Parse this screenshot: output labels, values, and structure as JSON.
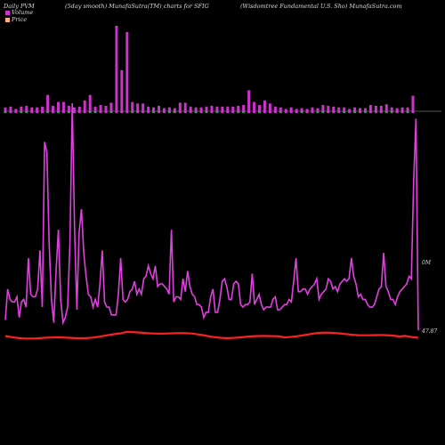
{
  "header": {
    "left": "Daily PVM",
    "center_left": "(5day smooth) MunafaSutra(TM) charts for SFIG",
    "right": "(Wisdomtree   Fundamental U.S. Sho) MunafaSutra.com"
  },
  "legend": [
    {
      "label": "Volume",
      "color": "#cc33cc"
    },
    {
      "label": "Price",
      "color": "#ffaa88"
    }
  ],
  "colors": {
    "volume_bar": "#cc33cc",
    "volume_bar_down": "#22aa44",
    "volume_line": "#e040e0",
    "price_line": "#ff2020",
    "zero_line": "#aaaaaa"
  },
  "chart_data": {
    "type": "bar",
    "volume_line_label": "0M",
    "price_label": "47.87",
    "bars": [
      5,
      6,
      3,
      6,
      7,
      5,
      5,
      6,
      21,
      7,
      12,
      12,
      7,
      5,
      6,
      14,
      21,
      6,
      8,
      7,
      11,
      110,
      53,
      102,
      12,
      10,
      10,
      6,
      5,
      7,
      4,
      5,
      4,
      11,
      11,
      6,
      5,
      5,
      6,
      7,
      6,
      6,
      6,
      6,
      7,
      8,
      27,
      12,
      8,
      14,
      10,
      6,
      5,
      3,
      5,
      3,
      4,
      3,
      5,
      4,
      8,
      7,
      6,
      5,
      5,
      3,
      5,
      4,
      4,
      8,
      7,
      7,
      9,
      5,
      4,
      5,
      5,
      20
    ],
    "volume_line": [
      6,
      18,
      14,
      13,
      13,
      15,
      7,
      13,
      14,
      11,
      30,
      16,
      15,
      15,
      18,
      33,
      11,
      75,
      71,
      35,
      14,
      5,
      25,
      41,
      14,
      5,
      7,
      11,
      36,
      90,
      41,
      10,
      40,
      49,
      32,
      23,
      16,
      15,
      11,
      14,
      11,
      20,
      33,
      13,
      11,
      11,
      8,
      8,
      8,
      16,
      30,
      14,
      13,
      14,
      17,
      18,
      21,
      16,
      18,
      16,
      22,
      23,
      27,
      24,
      22,
      27,
      19,
      20,
      20,
      19,
      18,
      16,
      41,
      13,
      15,
      15,
      14,
      22,
      17,
      25,
      19,
      16,
      15,
      12,
      12,
      11,
      7,
      9,
      9,
      15,
      18,
      9,
      9,
      14,
      21,
      22,
      19,
      14,
      14,
      20,
      21,
      20,
      12,
      11,
      12,
      12,
      13,
      24,
      12,
      14,
      16,
      12,
      10,
      11,
      11,
      11,
      14,
      15,
      10,
      10,
      11,
      12,
      12,
      14,
      13,
      21,
      30,
      17,
      17,
      18,
      18,
      16,
      18,
      19,
      20,
      22,
      14,
      16,
      17,
      18,
      22,
      21,
      18,
      19,
      17,
      20,
      21,
      22,
      21,
      22,
      30,
      23,
      20,
      15,
      16,
      14,
      14,
      12,
      11,
      11,
      12,
      15,
      18,
      19,
      32,
      19,
      17,
      14,
      14,
      12,
      15,
      17,
      18,
      19,
      20,
      23,
      22,
      60,
      84,
      2
    ]
  }
}
